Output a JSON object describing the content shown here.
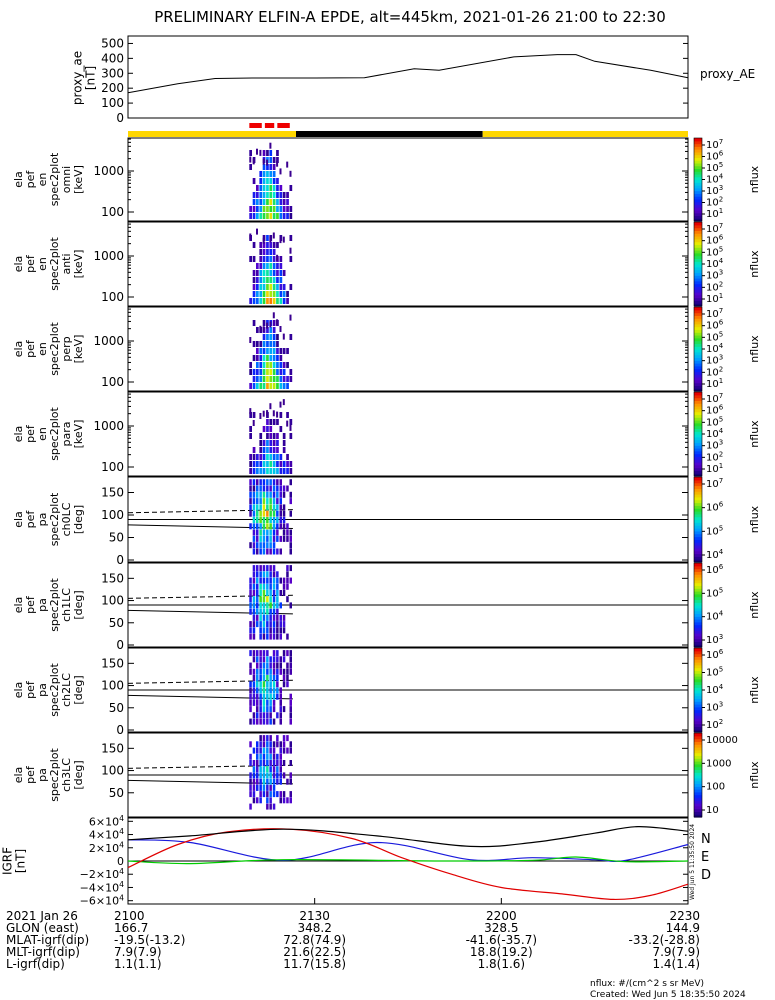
{
  "title": "PRELIMINARY ELFIN-A EPDE, alt=445km, 2021-01-26 21:00 to 22:30",
  "proxy_ae": {
    "ylabel": [
      "proxy_ae",
      "[nT]"
    ],
    "legend": "proxy_AE",
    "ticks": [
      "500",
      "400",
      "300",
      "200",
      "100",
      "0"
    ]
  },
  "energy_panels": [
    {
      "ylabel": [
        "ela",
        "pef",
        "en",
        "spec2plot",
        "omni",
        "[keV]"
      ],
      "ticks": [
        "1000",
        "100"
      ]
    },
    {
      "ylabel": [
        "ela",
        "pef",
        "en",
        "spec2plot",
        "anti",
        "[keV]"
      ],
      "ticks": [
        "1000",
        "100"
      ]
    },
    {
      "ylabel": [
        "ela",
        "pef",
        "en",
        "spec2plot",
        "perp",
        "[keV]"
      ],
      "ticks": [
        "1000",
        "100"
      ]
    },
    {
      "ylabel": [
        "ela",
        "pef",
        "en",
        "spec2plot",
        "para",
        "[keV]"
      ],
      "ticks": [
        "1000",
        "100"
      ]
    }
  ],
  "pa_panels": [
    {
      "ylabel": [
        "ela",
        "pef",
        "pa",
        "spec2plot",
        "ch0LC",
        "[deg]"
      ],
      "ticks": [
        "150",
        "100",
        "50",
        "0"
      ]
    },
    {
      "ylabel": [
        "ela",
        "pef",
        "pa",
        "spec2plot",
        "ch1LC",
        "[deg]"
      ],
      "ticks": [
        "150",
        "100",
        "50",
        "0"
      ]
    },
    {
      "ylabel": [
        "ela",
        "pef",
        "pa",
        "spec2plot",
        "ch2LC",
        "[deg]"
      ],
      "ticks": [
        "150",
        "100",
        "50",
        "0"
      ]
    },
    {
      "ylabel": [
        "ela",
        "pef",
        "pa",
        "spec2plot",
        "ch3LC",
        "[deg]"
      ],
      "ticks": [
        "150",
        "100",
        "50"
      ]
    }
  ],
  "colorbars": [
    {
      "labels": [
        "10^7",
        "10^6",
        "10^5",
        "10^4",
        "10^3",
        "10^2",
        "10^1"
      ],
      "unit": "nflux"
    },
    {
      "labels": [
        "10^7",
        "10^6",
        "10^5",
        "10^4",
        "10^3",
        "10^2",
        "10^1"
      ],
      "unit": "nflux"
    },
    {
      "labels": [
        "10^7",
        "10^6",
        "10^5",
        "10^4",
        "10^3",
        "10^2",
        "10^1"
      ],
      "unit": "nflux"
    },
    {
      "labels": [
        "10^7",
        "10^6",
        "10^5",
        "10^4",
        "10^3",
        "10^2",
        "10^1"
      ],
      "unit": "nflux"
    },
    {
      "labels": [
        "10^7",
        "10^6",
        "10^5",
        "10^4"
      ],
      "unit": "nflux"
    },
    {
      "labels": [
        "10^6",
        "10^5",
        "10^4",
        "10^3"
      ],
      "unit": "nflux"
    },
    {
      "labels": [
        "10^6",
        "10^5",
        "10^4",
        "10^3",
        "10^2"
      ],
      "unit": "nflux"
    },
    {
      "labels": [
        "10000",
        "1000",
        "100",
        "10"
      ],
      "unit": "nflux"
    }
  ],
  "igrf": {
    "ylabel": [
      "IGRF",
      "[nT]"
    ],
    "ticks": [
      "6×10^4",
      "4×10^4",
      "2×10^4",
      "0",
      "−2×10^4",
      "−4×10^4",
      "−6×10^4"
    ],
    "legend": [
      {
        "label": "N",
        "color": "#1a1adc"
      },
      {
        "label": "E",
        "color": "#00cc00"
      },
      {
        "label": "D",
        "color": "#e00000"
      }
    ],
    "side_note": "Wed Jun 5 11:35:50 2024"
  },
  "xaxis": {
    "row_labels": [
      "2021 Jan 26",
      "GLON (east)",
      "MLAT-igrf(dip)",
      "MLT-igrf(dip)",
      "L-igrf(dip)"
    ],
    "columns": [
      {
        "time": "2100",
        "glon": "166.7",
        "mlat": "-19.5(-13.2)",
        "mlt": "7.9(7.9)",
        "l": "1.1(1.1)"
      },
      {
        "time": "2130",
        "glon": "348.2",
        "mlat": "72.8(74.9)",
        "mlt": "21.6(22.5)",
        "l": "11.7(15.8)"
      },
      {
        "time": "2200",
        "glon": "328.5",
        "mlat": "-41.6(-35.7)",
        "mlt": "18.8(19.2)",
        "l": "1.8(1.6)"
      },
      {
        "time": "2230",
        "glon": "144.9",
        "mlat": "-33.2(-28.8)",
        "mlt": "7.9(7.9)",
        "l": "1.4(1.4)"
      }
    ]
  },
  "footer": {
    "units": "nflux: #/(cm^2 s sr MeV)",
    "created": "Created: Wed Jun  5 18:35:50 2024"
  },
  "chart_data": {
    "type": "line",
    "title": "PRELIMINARY ELFIN-A EPDE, alt=445km, 2021-01-26 21:00 to 22:30",
    "x_ticks": [
      "2100",
      "2130",
      "2200",
      "2230"
    ],
    "x_range_min": [
      0,
      90
    ],
    "proxy_ae": {
      "ylim": [
        0,
        550
      ],
      "x_min": [
        0,
        4,
        8,
        14,
        20,
        30,
        38,
        46,
        50,
        62,
        69,
        72,
        75,
        84,
        90
      ],
      "values": [
        170,
        200,
        230,
        265,
        268,
        268,
        270,
        330,
        320,
        410,
        425,
        425,
        380,
        320,
        270
      ]
    },
    "state_bar": {
      "segments": [
        {
          "x_min": [
            0,
            27
          ],
          "state": "yellow"
        },
        {
          "x_min": [
            27,
            57
          ],
          "state": "black"
        },
        {
          "x_min": [
            57,
            90
          ],
          "state": "yellow"
        }
      ],
      "science_zones_min": [
        [
          19.5,
          21.5
        ],
        [
          22,
          23.5
        ],
        [
          24,
          26
        ]
      ]
    },
    "science_interval_min": [
      19.5,
      26.5
    ],
    "pa_lines": {
      "dashed_deg": [
        105,
        112
      ],
      "solid_deg": [
        78,
        70
      ]
    },
    "igrf": {
      "ylim": [
        -65000,
        65000
      ],
      "series": [
        {
          "name": "N",
          "color": "#1a1adc",
          "x_min": [
            0,
            10,
            25,
            40,
            55,
            65,
            75,
            80,
            90
          ],
          "values": [
            32000,
            28000,
            1000,
            28000,
            2000,
            5000,
            2000,
            1000,
            25000
          ]
        },
        {
          "name": "E",
          "color": "#00cc00",
          "x_min": [
            0,
            10,
            25,
            50,
            65,
            72,
            80,
            90
          ],
          "values": [
            0,
            -4000,
            2000,
            0,
            1000,
            6000,
            -1000,
            0
          ]
        },
        {
          "name": "D",
          "color": "#e00000",
          "x_min": [
            0,
            8,
            16,
            26,
            36,
            44,
            52,
            60,
            70,
            78,
            84,
            90
          ],
          "values": [
            -10000,
            25000,
            44000,
            48000,
            34000,
            5000,
            -20000,
            -40000,
            -50000,
            -58000,
            -52000,
            -35000
          ]
        },
        {
          "name": "total",
          "color": "#000000",
          "x_min": [
            0,
            10,
            25,
            40,
            55,
            65,
            75,
            82,
            90
          ],
          "values": [
            32000,
            38000,
            48000,
            38000,
            22000,
            28000,
            42000,
            52000,
            45000
          ]
        }
      ]
    }
  }
}
